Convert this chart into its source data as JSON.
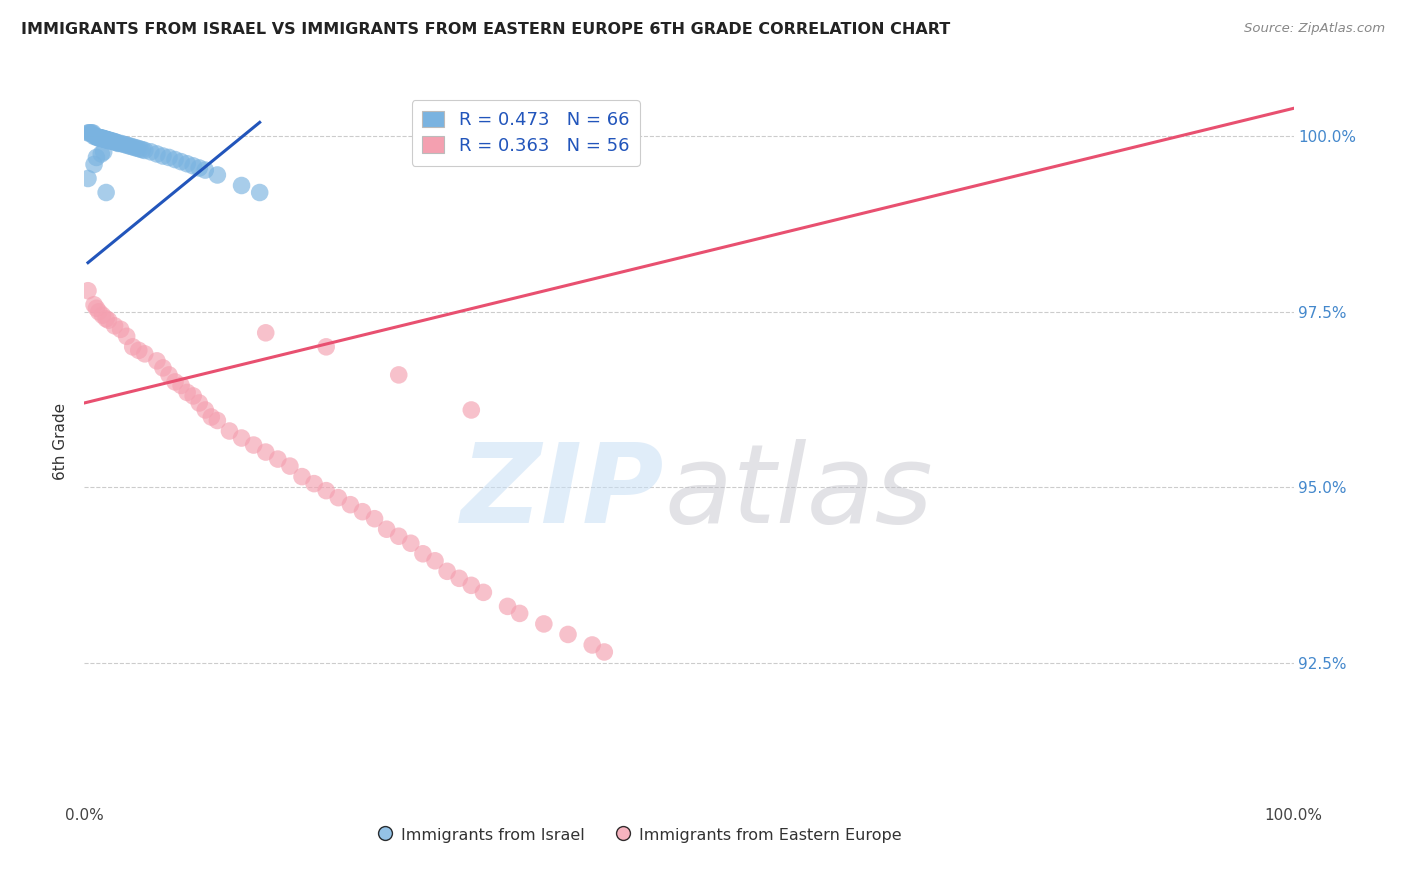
{
  "title": "IMMIGRANTS FROM ISRAEL VS IMMIGRANTS FROM EASTERN EUROPE 6TH GRADE CORRELATION CHART",
  "source": "Source: ZipAtlas.com",
  "ylabel": "6th Grade",
  "ytick_labels": [
    "92.5%",
    "95.0%",
    "97.5%",
    "100.0%"
  ],
  "ytick_values": [
    0.925,
    0.95,
    0.975,
    1.0
  ],
  "xlim": [
    0.0,
    1.0
  ],
  "ylim": [
    0.905,
    1.008
  ],
  "legend_blue_label": "R = 0.473   N = 66",
  "legend_pink_label": "R = 0.363   N = 56",
  "legend_bottom_blue": "Immigrants from Israel",
  "legend_bottom_pink": "Immigrants from Eastern Europe",
  "blue_color": "#7ab3e0",
  "pink_color": "#f4a0b0",
  "blue_line_color": "#2255bb",
  "pink_line_color": "#e85070",
  "background_color": "#ffffff",
  "grid_color": "#cccccc",
  "blue_scatter_x": [
    0.003,
    0.004,
    0.005,
    0.006,
    0.007,
    0.008,
    0.009,
    0.01,
    0.01,
    0.011,
    0.012,
    0.012,
    0.013,
    0.013,
    0.014,
    0.014,
    0.015,
    0.015,
    0.016,
    0.016,
    0.017,
    0.017,
    0.018,
    0.018,
    0.019,
    0.019,
    0.02,
    0.02,
    0.021,
    0.022,
    0.023,
    0.024,
    0.025,
    0.026,
    0.027,
    0.028,
    0.03,
    0.032,
    0.034,
    0.036,
    0.038,
    0.04,
    0.042,
    0.044,
    0.046,
    0.048,
    0.05,
    0.055,
    0.06,
    0.065,
    0.07,
    0.075,
    0.08,
    0.085,
    0.09,
    0.095,
    0.1,
    0.11,
    0.13,
    0.145,
    0.003,
    0.008,
    0.01,
    0.014,
    0.016,
    0.018
  ],
  "blue_scatter_y": [
    1.0005,
    1.0005,
    1.0005,
    1.0005,
    1.0005,
    1.0,
    1.0,
    1.0,
    1.0,
    0.9998,
    0.9998,
    0.9998,
    0.9998,
    0.9998,
    0.9998,
    0.9997,
    0.9997,
    0.9997,
    0.9997,
    0.9996,
    0.9996,
    0.9996,
    0.9996,
    0.9995,
    0.9995,
    0.9995,
    0.9995,
    0.9994,
    0.9994,
    0.9994,
    0.9993,
    0.9993,
    0.9992,
    0.9992,
    0.9991,
    0.999,
    0.999,
    0.9989,
    0.9988,
    0.9987,
    0.9986,
    0.9985,
    0.9984,
    0.9983,
    0.9982,
    0.9981,
    0.998,
    0.9978,
    0.9975,
    0.9972,
    0.997,
    0.9967,
    0.9964,
    0.9961,
    0.9958,
    0.9955,
    0.9952,
    0.9945,
    0.993,
    0.992,
    0.994,
    0.996,
    0.997,
    0.9975,
    0.9978,
    0.992
  ],
  "pink_scatter_x": [
    0.003,
    0.008,
    0.01,
    0.012,
    0.015,
    0.018,
    0.02,
    0.025,
    0.03,
    0.035,
    0.04,
    0.045,
    0.05,
    0.06,
    0.065,
    0.07,
    0.075,
    0.08,
    0.085,
    0.09,
    0.095,
    0.1,
    0.105,
    0.11,
    0.12,
    0.13,
    0.14,
    0.15,
    0.16,
    0.17,
    0.18,
    0.19,
    0.2,
    0.21,
    0.22,
    0.23,
    0.24,
    0.25,
    0.26,
    0.27,
    0.28,
    0.29,
    0.3,
    0.31,
    0.32,
    0.33,
    0.35,
    0.36,
    0.38,
    0.4,
    0.42,
    0.43,
    0.15,
    0.2,
    0.26,
    0.32
  ],
  "pink_scatter_y": [
    0.978,
    0.976,
    0.9755,
    0.975,
    0.9745,
    0.974,
    0.9738,
    0.973,
    0.9725,
    0.9715,
    0.97,
    0.9695,
    0.969,
    0.968,
    0.967,
    0.966,
    0.965,
    0.9645,
    0.9635,
    0.963,
    0.962,
    0.961,
    0.96,
    0.9595,
    0.958,
    0.957,
    0.956,
    0.955,
    0.954,
    0.953,
    0.9515,
    0.9505,
    0.9495,
    0.9485,
    0.9475,
    0.9465,
    0.9455,
    0.944,
    0.943,
    0.942,
    0.9405,
    0.9395,
    0.938,
    0.937,
    0.936,
    0.935,
    0.933,
    0.932,
    0.9305,
    0.929,
    0.9275,
    0.9265,
    0.972,
    0.97,
    0.966,
    0.961
  ],
  "blue_trend_x": [
    0.003,
    0.145
  ],
  "blue_trend_y": [
    0.982,
    1.002
  ],
  "pink_trend_x": [
    0.0,
    1.0
  ],
  "pink_trend_y": [
    0.962,
    1.004
  ]
}
